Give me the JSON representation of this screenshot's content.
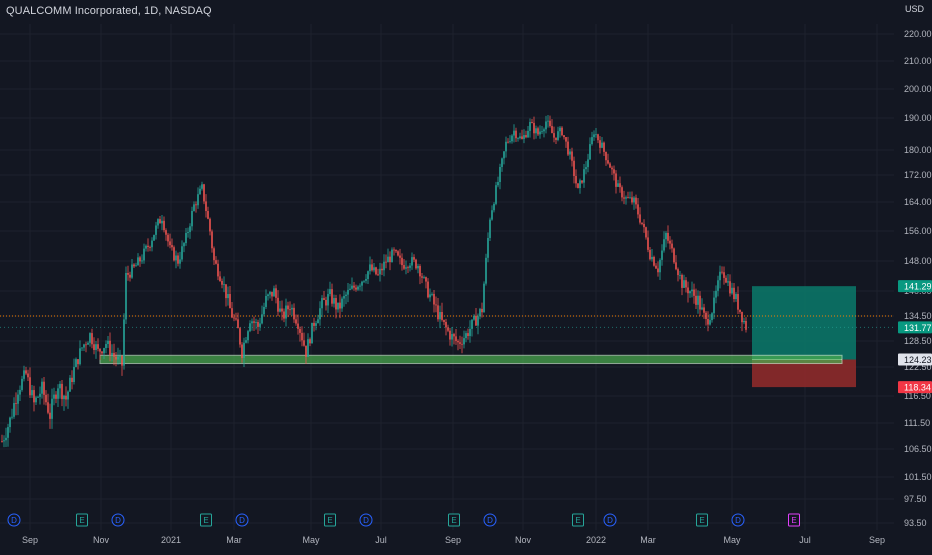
{
  "header": {
    "symbol_title": "QUALCOMM Incorporated, 1D, NASDAQ",
    "currency": "USD"
  },
  "chart_data": {
    "type": "candlestick",
    "title": "QUALCOMM Incorporated, 1D, NASDAQ",
    "ylim": [
      90,
      226
    ],
    "y_ticks": [
      "220.00",
      "210.00",
      "200.00",
      "190.00",
      "180.00",
      "172.00",
      "164.00",
      "156.00",
      "148.00",
      "140.00",
      "134.50",
      "128.50",
      "122.50",
      "116.50",
      "111.50",
      "106.50",
      "101.50",
      "97.50",
      "93.50"
    ],
    "x_ticks": [
      "Sep",
      "Nov",
      "2021",
      "Mar",
      "May",
      "Jul",
      "Sep",
      "Nov",
      "2022",
      "Mar",
      "May",
      "Jul",
      "Sep"
    ],
    "price_path": [
      [
        0,
        108
      ],
      [
        4,
        112
      ],
      [
        8,
        118
      ],
      [
        12,
        121
      ],
      [
        16,
        115
      ],
      [
        20,
        118
      ],
      [
        24,
        113
      ],
      [
        28,
        119
      ],
      [
        32,
        116
      ],
      [
        36,
        122
      ],
      [
        40,
        127
      ],
      [
        44,
        130
      ],
      [
        48,
        126
      ],
      [
        52,
        128
      ],
      [
        56,
        125
      ],
      [
        60,
        123
      ],
      [
        62,
        144
      ],
      [
        66,
        146
      ],
      [
        70,
        149
      ],
      [
        74,
        153
      ],
      [
        78,
        158
      ],
      [
        80,
        160
      ],
      [
        84,
        151
      ],
      [
        88,
        148
      ],
      [
        92,
        154
      ],
      [
        96,
        163
      ],
      [
        100,
        168
      ],
      [
        104,
        156
      ],
      [
        106,
        148
      ],
      [
        110,
        143
      ],
      [
        114,
        136
      ],
      [
        118,
        131
      ],
      [
        120,
        126
      ],
      [
        124,
        134
      ],
      [
        128,
        132
      ],
      [
        132,
        138
      ],
      [
        136,
        140
      ],
      [
        140,
        134
      ],
      [
        144,
        137
      ],
      [
        148,
        133
      ],
      [
        152,
        126
      ],
      [
        156,
        133
      ],
      [
        160,
        137
      ],
      [
        164,
        139
      ],
      [
        168,
        136
      ],
      [
        172,
        139
      ],
      [
        176,
        141
      ],
      [
        180,
        143
      ],
      [
        184,
        146
      ],
      [
        188,
        144
      ],
      [
        192,
        148
      ],
      [
        196,
        150
      ],
      [
        200,
        147
      ],
      [
        204,
        148
      ],
      [
        208,
        147
      ],
      [
        212,
        141
      ],
      [
        216,
        137
      ],
      [
        220,
        133
      ],
      [
        224,
        130
      ],
      [
        228,
        128
      ],
      [
        232,
        130
      ],
      [
        236,
        133
      ],
      [
        240,
        136
      ],
      [
        244,
        160
      ],
      [
        248,
        170
      ],
      [
        252,
        182
      ],
      [
        256,
        186
      ],
      [
        260,
        183
      ],
      [
        264,
        188
      ],
      [
        268,
        185
      ],
      [
        272,
        189
      ],
      [
        276,
        184
      ],
      [
        280,
        186
      ],
      [
        284,
        178
      ],
      [
        288,
        167
      ],
      [
        292,
        175
      ],
      [
        296,
        186
      ],
      [
        300,
        181
      ],
      [
        304,
        175
      ],
      [
        308,
        168
      ],
      [
        312,
        165
      ],
      [
        316,
        164
      ],
      [
        320,
        158
      ],
      [
        324,
        150
      ],
      [
        328,
        146
      ],
      [
        332,
        155
      ],
      [
        336,
        149
      ],
      [
        340,
        142
      ],
      [
        344,
        140
      ],
      [
        348,
        138
      ],
      [
        352,
        133
      ],
      [
        356,
        137
      ],
      [
        360,
        146
      ],
      [
        364,
        141
      ],
      [
        368,
        137
      ],
      [
        372,
        132
      ]
    ],
    "x_index_range": [
      0,
      372
    ],
    "x_tick_indices": [
      0,
      32,
      64,
      96,
      128,
      160,
      192,
      224,
      256,
      288,
      320,
      352,
      384
    ],
    "levels": {
      "dotted_level": 134.5,
      "support_zone_top": 125.2,
      "support_zone_bottom": 123.3
    },
    "price_labels": [
      {
        "text": "141.29",
        "value": 141.29,
        "color": "#089981"
      },
      {
        "text": "131.77",
        "value": 131.77,
        "color": "#089981"
      },
      {
        "text": "124.23",
        "value": 124.23,
        "color": "#e0e3eb"
      },
      {
        "text": "118.34",
        "value": 118.34,
        "color": "#f23645"
      }
    ],
    "position": {
      "entry": 124.23,
      "target": 141.29,
      "stop": 118.34
    },
    "events": [
      {
        "label": "D",
        "kind": "dividend",
        "index": 6
      },
      {
        "label": "E",
        "kind": "earnings",
        "index": 40
      },
      {
        "label": "D",
        "kind": "dividend",
        "index": 58
      },
      {
        "label": "E",
        "kind": "earnings",
        "index": 102
      },
      {
        "label": "D",
        "kind": "dividend",
        "index": 120
      },
      {
        "label": "E",
        "kind": "earnings",
        "index": 164
      },
      {
        "label": "D",
        "kind": "dividend",
        "index": 182
      },
      {
        "label": "E",
        "kind": "earnings",
        "index": 226
      },
      {
        "label": "D",
        "kind": "dividend",
        "index": 244
      },
      {
        "label": "E",
        "kind": "earnings",
        "index": 288
      },
      {
        "label": "D",
        "kind": "dividend",
        "index": 304
      },
      {
        "label": "E",
        "kind": "earnings",
        "index": 350
      },
      {
        "label": "D",
        "kind": "dividend",
        "index": 368
      },
      {
        "label": "E",
        "kind": "earnings-upcoming",
        "index": 396
      }
    ],
    "colors": {
      "up": "#26a69a",
      "down": "#ef5350",
      "background": "#131722",
      "grid": "#1e222d",
      "support_zone": "#4caf50",
      "target_zone": "#0b7a6b",
      "stop_zone": "#8e2a2a",
      "dotted_level": "#f57c00",
      "dividend": "#2962ff",
      "earnings": "#26a69a",
      "earnings_upcoming": "#e040fb"
    }
  }
}
